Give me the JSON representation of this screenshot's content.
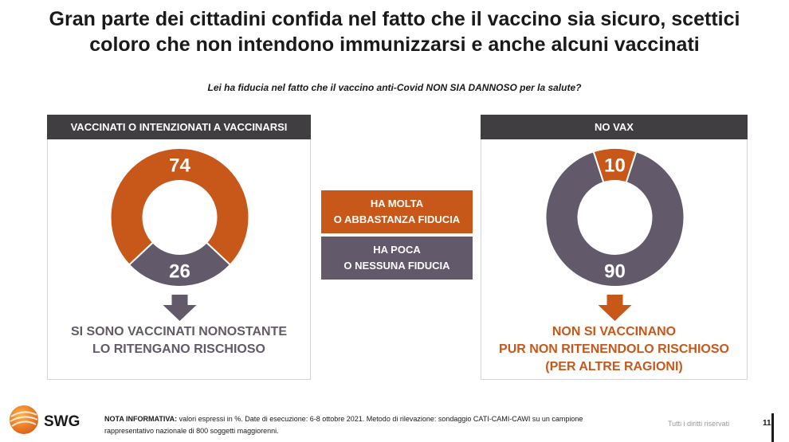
{
  "title_line1": "Gran parte dei cittadini confida nel fatto che il vaccino sia sicuro, scettici",
  "title_line2": "coloro che non intendono immunizzarsi e anche alcuni vaccinati",
  "question": "Lei ha fiducia nel fatto che il vaccino anti-Covid NON SIA DANNOSO per la salute?",
  "colors": {
    "orange": "#c8571a",
    "gray": "#625a6b",
    "header": "#403e41"
  },
  "legend": {
    "high": {
      "line1": "HA MOLTA",
      "line2": "O ABBASTANZA FIDUCIA",
      "color": "#c8571a"
    },
    "low": {
      "line1": "HA POCA",
      "line2": "O NESSUNA FIDUCIA",
      "color": "#625a6b"
    }
  },
  "chart_data": [
    {
      "type": "pie",
      "panel_title": "VACCINATI O INTENZIONATI A VACCINARSI",
      "slices": [
        {
          "label": "HA MOLTA O ABBASTANZA FIDUCIA",
          "value": 74,
          "color": "#c8571a"
        },
        {
          "label": "HA POCA O NESSUNA FIDUCIA",
          "value": 26,
          "color": "#625a6b"
        }
      ],
      "arrow_color": "#625a6b",
      "caption": [
        "SI SONO VACCINATI NONOSTANTE",
        "LO RITENGANO RISCHIOSO"
      ],
      "caption_color": "#625a6b"
    },
    {
      "type": "pie",
      "panel_title": "NO VAX",
      "slices": [
        {
          "label": "HA MOLTA O ABBASTANZA FIDUCIA",
          "value": 10,
          "color": "#c8571a"
        },
        {
          "label": "HA POCA O NESSUNA FIDUCIA",
          "value": 90,
          "color": "#625a6b"
        }
      ],
      "arrow_color": "#c8571a",
      "caption": [
        "NON SI VACCINANO",
        "PUR NON RITENENDOLO RISCHIOSO",
        "(PER ALTRE RAGIONI)"
      ],
      "caption_color": "#c8571a"
    }
  ],
  "footer": {
    "brand": "SWG",
    "note_label": "NOTA INFORMATIVA:",
    "note_text": "valori espressi in %. Date di esecuzione: 6-8 ottobre 2021. Metodo di rilevazione: sondaggio CATI-CAMI-CAWI su un campione rappresentativo nazionale di 800 soggetti maggiorenni.",
    "rights": "Tutti i diritti riservati",
    "page": "11"
  }
}
